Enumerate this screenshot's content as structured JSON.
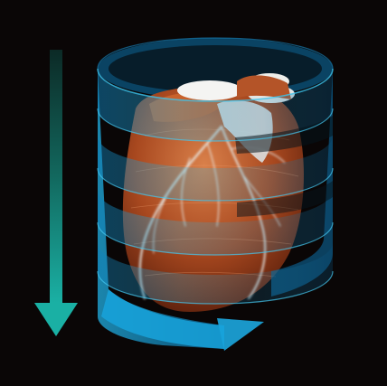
{
  "figure": {
    "subject": "heart",
    "overlay": "helical-scan-path",
    "direction_indicator": "down-arrow-icon"
  },
  "colors": {
    "background": "#0a0606",
    "arrow_top": "#0f3a34",
    "arrow_bottom": "#1aa59a",
    "helix": "#1ea3d6",
    "helix_dark": "#0b5d8c",
    "tissue": "#b4532a",
    "tissue_light": "#d9804a",
    "vessel": "#e9f2f2"
  }
}
